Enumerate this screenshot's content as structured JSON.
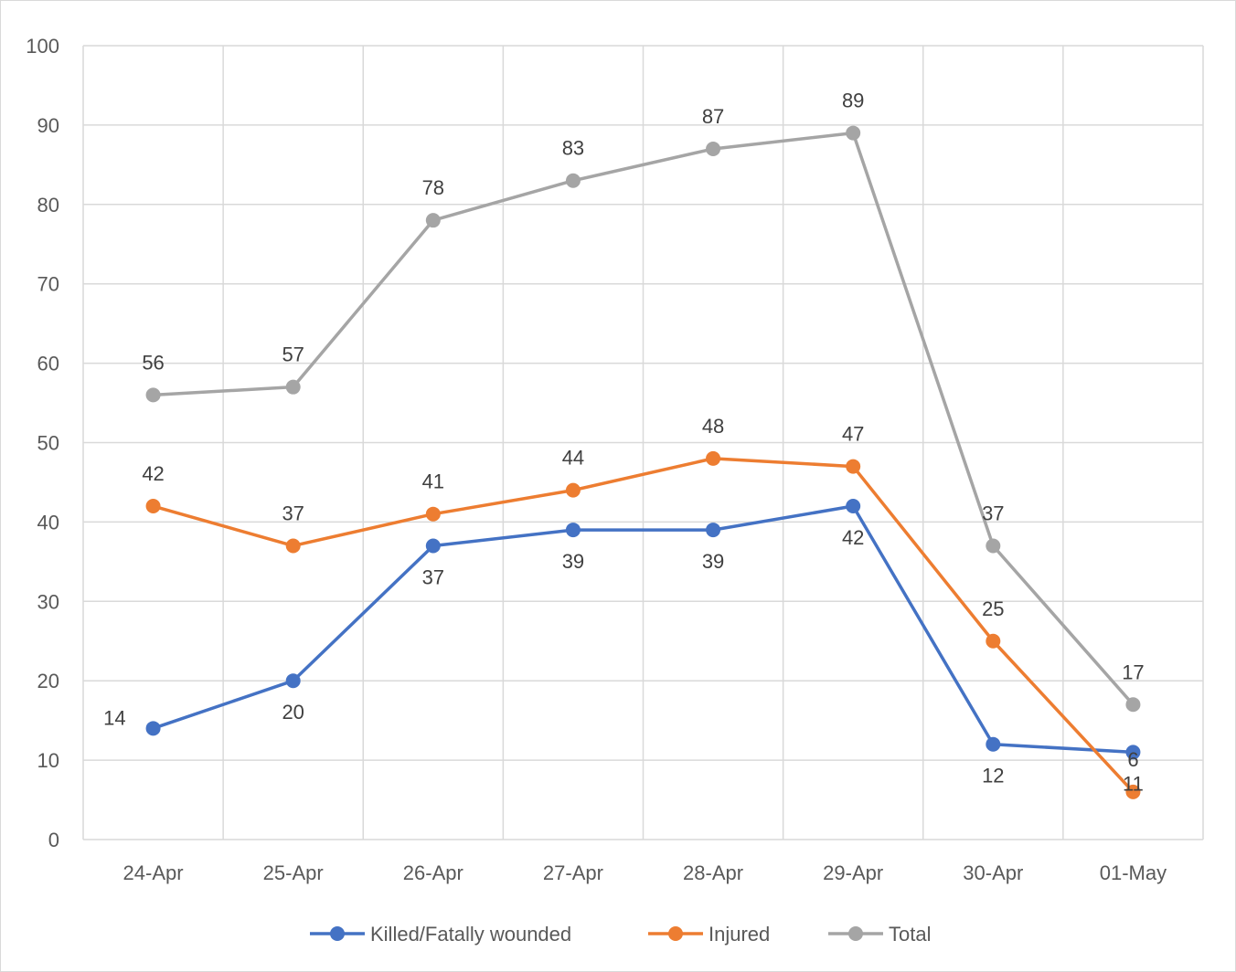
{
  "chart_data": {
    "type": "line",
    "title": "",
    "xlabel": "",
    "ylabel": "",
    "categories": [
      "24-Apr",
      "25-Apr",
      "26-Apr",
      "27-Apr",
      "28-Apr",
      "29-Apr",
      "30-Apr",
      "01-May"
    ],
    "ylim": [
      0,
      100
    ],
    "yticks": [
      0,
      10,
      20,
      30,
      40,
      50,
      60,
      70,
      80,
      90,
      100
    ],
    "grid": true,
    "legend": "bottom",
    "series": [
      {
        "name": "Killed/Fatally wounded",
        "color": "#4472C4",
        "values": [
          14,
          20,
          37,
          39,
          39,
          42,
          12,
          11
        ],
        "label_position": "below"
      },
      {
        "name": "Injured",
        "color": "#ED7D31",
        "values": [
          42,
          37,
          41,
          44,
          48,
          47,
          25,
          6
        ],
        "label_position": "above"
      },
      {
        "name": "Total",
        "color": "#A5A5A5",
        "values": [
          56,
          57,
          78,
          83,
          87,
          89,
          37,
          17
        ],
        "label_position": "above"
      }
    ]
  }
}
